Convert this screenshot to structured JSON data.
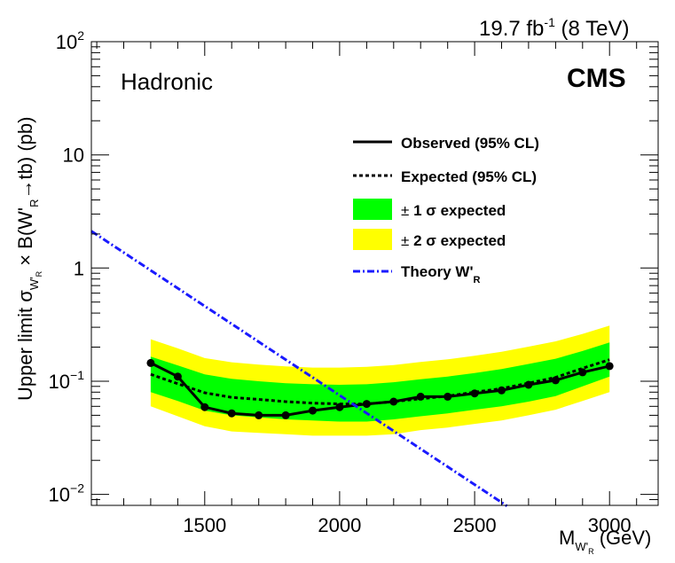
{
  "header": {
    "lumi": "19.7 fb",
    "lumi_exp": "-1",
    "energy": " (8 TeV)"
  },
  "labels": {
    "channel": "Hadronic",
    "experiment": "CMS"
  },
  "chart_data": {
    "type": "line",
    "title": "",
    "xlabel": {
      "main": "M",
      "sub": "W'",
      "subsub": "R",
      "unit": " (GeV)"
    },
    "ylabel": {
      "pre": "Upper limit σ",
      "sub": "W'",
      "subsub": "R",
      "mid": " × B(W'",
      "sub2": "R",
      "post": "→tb) (pb)"
    },
    "xlim": [
      1080,
      3180
    ],
    "ylim": [
      0.008,
      100
    ],
    "yscale": "log",
    "xticks": [
      1500,
      2000,
      2500,
      3000
    ],
    "xtick_labels": [
      "1500",
      "2000",
      "2500",
      "3000"
    ],
    "yticks": [
      {
        "value": 0.01,
        "base": "10",
        "exp": "−2"
      },
      {
        "value": 0.1,
        "base": "10",
        "exp": "−1"
      },
      {
        "value": 1,
        "base": "1",
        "exp": ""
      },
      {
        "value": 10,
        "base": "10",
        "exp": ""
      },
      {
        "value": 100,
        "base": "10",
        "exp": "2"
      }
    ],
    "mass": [
      1300,
      1400,
      1500,
      1600,
      1700,
      1800,
      1900,
      2000,
      2100,
      2200,
      2300,
      2400,
      2500,
      2600,
      2700,
      2800,
      2900,
      3000
    ],
    "observed": [
      0.145,
      0.11,
      0.059,
      0.052,
      0.05,
      0.05,
      0.055,
      0.059,
      0.063,
      0.066,
      0.073,
      0.073,
      0.078,
      0.083,
      0.093,
      0.102,
      0.12,
      0.136
    ],
    "expected": [
      0.115,
      0.095,
      0.079,
      0.072,
      0.069,
      0.066,
      0.064,
      0.063,
      0.063,
      0.066,
      0.07,
      0.074,
      0.08,
      0.086,
      0.096,
      0.108,
      0.13,
      0.155
    ],
    "band1_low": [
      0.08,
      0.067,
      0.055,
      0.05,
      0.048,
      0.046,
      0.045,
      0.044,
      0.044,
      0.046,
      0.049,
      0.052,
      0.056,
      0.06,
      0.066,
      0.074,
      0.09,
      0.11
    ],
    "band1_high": [
      0.165,
      0.138,
      0.115,
      0.105,
      0.1,
      0.096,
      0.094,
      0.093,
      0.094,
      0.098,
      0.104,
      0.11,
      0.118,
      0.128,
      0.142,
      0.158,
      0.185,
      0.22
    ],
    "band2_low": [
      0.06,
      0.049,
      0.04,
      0.036,
      0.035,
      0.034,
      0.033,
      0.033,
      0.033,
      0.034,
      0.037,
      0.039,
      0.042,
      0.045,
      0.05,
      0.056,
      0.067,
      0.08
    ],
    "band2_high": [
      0.235,
      0.195,
      0.16,
      0.147,
      0.14,
      0.135,
      0.132,
      0.132,
      0.134,
      0.139,
      0.148,
      0.156,
      0.168,
      0.182,
      0.202,
      0.225,
      0.262,
      0.31
    ],
    "theory": {
      "x": [
        1080,
        2620
      ],
      "y": [
        2.12,
        0.0079
      ]
    },
    "legend": {
      "observed": "Observed (95% CL)",
      "expected": "Expected (95% CL)",
      "one_sigma": "1 σ expected",
      "two_sigma": "2 σ expected",
      "pm": "± ",
      "theory": "Theory W'",
      "theory_sub": "R"
    },
    "colors": {
      "observed": "#000000",
      "expected": "#000000",
      "band1": "#00ff00",
      "band2": "#ffff00",
      "theory": "#1a1aff"
    }
  }
}
